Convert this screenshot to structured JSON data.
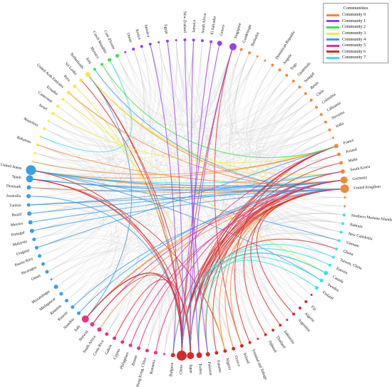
{
  "legend": {
    "title": "Communities",
    "items": [
      {
        "label": "Community 0",
        "color": "#f4883a"
      },
      {
        "label": "Community 1",
        "color": "#9b3fe8"
      },
      {
        "label": "Community 2",
        "color": "#3fe04a"
      },
      {
        "label": "Community 3",
        "color": "#f2e94a"
      },
      {
        "label": "Community 4",
        "color": "#3b9ee8"
      },
      {
        "label": "Community 5",
        "color": "#ee2f8a"
      },
      {
        "label": "Community 6",
        "color": "#d62a2a"
      },
      {
        "label": "Community 7",
        "color": "#35e6e6"
      }
    ]
  },
  "nodes": [
    {
      "label": "Singapore",
      "c": 1,
      "s": 5
    },
    {
      "label": "Guadeloupe",
      "c": 0,
      "s": 2
    },
    {
      "label": "Barbados",
      "c": 0,
      "s": 2
    },
    {
      "label": "",
      "c": 0,
      "s": 1.5
    },
    {
      "label": "",
      "c": 0,
      "s": 1.5
    },
    {
      "label": "Dominican Republic",
      "c": 0,
      "s": 2
    },
    {
      "label": "Angola",
      "c": 0,
      "s": 2
    },
    {
      "label": "Togo",
      "c": 0,
      "s": 2
    },
    {
      "label": "Guatemala",
      "c": 0,
      "s": 2
    },
    {
      "label": "Senegal",
      "c": 0,
      "s": 2
    },
    {
      "label": "Benin",
      "c": 0,
      "s": 2
    },
    {
      "label": "Chile",
      "c": 0,
      "s": 2
    },
    {
      "label": "Colombia",
      "c": 0,
      "s": 2
    },
    {
      "label": "Lithuania",
      "c": 0,
      "s": 2
    },
    {
      "label": "Slovenia",
      "c": 0,
      "s": 2
    },
    {
      "label": "India",
      "c": 0,
      "s": 2
    },
    {
      "label": "",
      "c": 0,
      "s": 1.5
    },
    {
      "label": "France",
      "c": 0,
      "s": 3
    },
    {
      "label": "Poland",
      "c": 0,
      "s": 2.5
    },
    {
      "label": "Malta",
      "c": 0,
      "s": 2.5
    },
    {
      "label": "South Korea",
      "c": 0,
      "s": 3
    },
    {
      "label": "Germany",
      "c": 0,
      "s": 5
    },
    {
      "label": "United Kingdom",
      "c": 0,
      "s": 6
    },
    {
      "label": "",
      "c": 0,
      "s": 1.5
    },
    {
      "label": "",
      "c": 0,
      "s": 1.5
    },
    {
      "label": "Northern Mariana Islands",
      "c": 7,
      "s": 2
    },
    {
      "label": "Bahrain",
      "c": 7,
      "s": 2
    },
    {
      "label": "New Caledonia",
      "c": 7,
      "s": 2
    },
    {
      "label": "Vietnam",
      "c": 7,
      "s": 2
    },
    {
      "label": "Ghana",
      "c": 7,
      "s": 2
    },
    {
      "label": "Taiwan, China",
      "c": 7,
      "s": 2
    },
    {
      "label": "Estonia",
      "c": 7,
      "s": 2
    },
    {
      "label": "Canada",
      "c": 7,
      "s": 3
    },
    {
      "label": "Sweden",
      "c": 7,
      "s": 2.5
    },
    {
      "label": "Finland",
      "c": 7,
      "s": 2.5
    },
    {
      "label": "",
      "c": 6,
      "s": 1.5
    },
    {
      "label": "Fiji",
      "c": 6,
      "s": 2
    },
    {
      "label": "Algeria",
      "c": 6,
      "s": 2
    },
    {
      "label": "Argentina",
      "c": 6,
      "s": 2
    },
    {
      "label": "",
      "c": 6,
      "s": 1.5
    },
    {
      "label": "Indonesia",
      "c": 6,
      "s": 2
    },
    {
      "label": "Thailand",
      "c": 6,
      "s": 2
    },
    {
      "label": "Djibouti",
      "c": 6,
      "s": 2
    },
    {
      "label": "",
      "c": 6,
      "s": 1.5
    },
    {
      "label": "Trinidad and Tobago",
      "c": 6,
      "s": 2
    },
    {
      "label": "Ireland",
      "c": 6,
      "s": 2.5
    },
    {
      "label": "Greece",
      "c": 6,
      "s": 2.5
    },
    {
      "label": "Nigeria",
      "c": 6,
      "s": 2.5
    },
    {
      "label": "Panama",
      "c": 6,
      "s": 2.5
    },
    {
      "label": "Pakistan",
      "c": 6,
      "s": 3
    },
    {
      "label": "Turkey",
      "c": 6,
      "s": 4
    },
    {
      "label": "Japan",
      "c": 6,
      "s": 5
    },
    {
      "label": "China",
      "c": 6,
      "s": 7
    },
    {
      "label": "Bulgaria",
      "c": 6,
      "s": 3
    },
    {
      "label": "",
      "c": 5,
      "s": 1.5
    },
    {
      "label": "Romania",
      "c": 5,
      "s": 2.5
    },
    {
      "label": "Hong Kong, China",
      "c": 5,
      "s": 2.5
    },
    {
      "label": "Brunei",
      "c": 5,
      "s": 2.5
    },
    {
      "label": "Philippines",
      "c": 5,
      "s": 2.5
    },
    {
      "label": "Cyprus",
      "c": 5,
      "s": 2.5
    },
    {
      "label": "Gabon",
      "c": 5,
      "s": 2.5
    },
    {
      "label": "Costa Rica",
      "c": 5,
      "s": 2.5
    },
    {
      "label": "South Africa",
      "c": 5,
      "s": 3
    },
    {
      "label": "Norway",
      "c": 5,
      "s": 3
    },
    {
      "label": "Italy",
      "c": 5,
      "s": 5
    },
    {
      "label": "Namibia",
      "c": 4,
      "s": 2.5
    },
    {
      "label": "Kuwait",
      "c": 4,
      "s": 2.5
    },
    {
      "label": "Reunion",
      "c": 4,
      "s": 2.5
    },
    {
      "label": "Madagascar",
      "c": 4,
      "s": 2.5
    },
    {
      "label": "Mozambique",
      "c": 4,
      "s": 3
    },
    {
      "label": "",
      "c": 4,
      "s": 1.5
    },
    {
      "label": "Oman",
      "c": 4,
      "s": 2.5
    },
    {
      "label": "Nicaragua",
      "c": 4,
      "s": 2.5
    },
    {
      "label": "Puerto Rico",
      "c": 4,
      "s": 2.5
    },
    {
      "label": "Uruguay",
      "c": 4,
      "s": 2.5
    },
    {
      "label": "Malaysia",
      "c": 4,
      "s": 2.5
    },
    {
      "label": "Portugal",
      "c": 4,
      "s": 3
    },
    {
      "label": "Mexico",
      "c": 4,
      "s": 3
    },
    {
      "label": "Brazil",
      "c": 4,
      "s": 3
    },
    {
      "label": "Tunisia",
      "c": 4,
      "s": 2.5
    },
    {
      "label": "Australia",
      "c": 4,
      "s": 3
    },
    {
      "label": "Denmark",
      "c": 4,
      "s": 3
    },
    {
      "label": "Spain",
      "c": 4,
      "s": 5
    },
    {
      "label": "United States",
      "c": 4,
      "s": 7
    },
    {
      "label": "",
      "c": 3,
      "s": 1.5
    },
    {
      "label": "",
      "c": 3,
      "s": 1.5
    },
    {
      "label": "Bahamas",
      "c": 3,
      "s": 2
    },
    {
      "label": "",
      "c": 3,
      "s": 1.5
    },
    {
      "label": "Mauritius",
      "c": 3,
      "s": 2
    },
    {
      "label": "",
      "c": 3,
      "s": 1.5
    },
    {
      "label": "Israel",
      "c": 3,
      "s": 2
    },
    {
      "label": "Cameroon",
      "c": 3,
      "s": 2
    },
    {
      "label": "Ecuador",
      "c": 3,
      "s": 2
    },
    {
      "label": "United Arab Emirates",
      "c": 3,
      "s": 2.5
    },
    {
      "label": "Peru",
      "c": 3,
      "s": 2.5
    },
    {
      "label": "Sri Lanka",
      "c": 3,
      "s": 2.5
    },
    {
      "label": "Netherlands",
      "c": 3,
      "s": 3.5
    },
    {
      "label": "Iraq",
      "c": 2,
      "s": 2
    },
    {
      "label": "Monaco",
      "c": 2,
      "s": 2
    },
    {
      "label": "Czech Republic",
      "c": 2,
      "s": 2.5
    },
    {
      "label": "Cote d'Ivoire",
      "c": 2,
      "s": 2.5
    },
    {
      "label": "",
      "c": 1,
      "s": 1.5
    },
    {
      "label": "Oman",
      "c": 1,
      "s": 2
    },
    {
      "label": "Kenya",
      "c": 1,
      "s": 2
    },
    {
      "label": "Jamaica",
      "c": 1,
      "s": 2
    },
    {
      "label": "",
      "c": 1,
      "s": 1.5
    },
    {
      "label": "Egypt",
      "c": 1,
      "s": 2
    },
    {
      "label": "",
      "c": 1,
      "s": 1.5
    },
    {
      "label": "New Zealand",
      "c": 1,
      "s": 2
    },
    {
      "label": "Jamaica",
      "c": 1,
      "s": 2
    },
    {
      "label": "South Africa",
      "c": 1,
      "s": 2
    },
    {
      "label": "El Salvador",
      "c": 1,
      "s": 2
    },
    {
      "label": "Greece",
      "c": 1,
      "s": 3.5
    }
  ],
  "edges": [
    [
      113,
      52,
      6
    ],
    [
      113,
      50,
      1
    ],
    [
      113,
      64,
      1
    ],
    [
      113,
      63,
      1
    ],
    [
      113,
      95,
      1
    ],
    [
      0,
      45,
      6
    ],
    [
      0,
      52,
      6
    ],
    [
      0,
      51,
      1
    ],
    [
      83,
      22,
      0
    ],
    [
      83,
      21,
      0
    ],
    [
      83,
      17,
      0
    ],
    [
      83,
      20,
      7
    ],
    [
      83,
      33,
      4
    ],
    [
      83,
      28,
      4
    ],
    [
      82,
      22,
      0
    ],
    [
      82,
      21,
      4
    ],
    [
      82,
      47,
      6
    ],
    [
      82,
      52,
      6
    ],
    [
      81,
      21,
      4
    ],
    [
      81,
      22,
      0
    ],
    [
      80,
      52,
      4
    ],
    [
      78,
      21,
      4
    ],
    [
      96,
      52,
      6
    ],
    [
      96,
      51,
      6
    ],
    [
      96,
      22,
      0
    ],
    [
      96,
      20,
      3
    ],
    [
      96,
      21,
      3
    ],
    [
      95,
      52,
      6
    ],
    [
      94,
      51,
      3
    ],
    [
      93,
      47,
      3
    ],
    [
      93,
      22,
      0
    ],
    [
      99,
      87,
      7
    ],
    [
      92,
      32,
      3
    ],
    [
      90,
      17,
      3
    ],
    [
      64,
      22,
      0
    ],
    [
      64,
      21,
      0
    ],
    [
      64,
      113,
      1
    ],
    [
      64,
      52,
      6
    ],
    [
      64,
      96,
      4
    ],
    [
      63,
      21,
      5
    ],
    [
      62,
      22,
      0
    ],
    [
      61,
      113,
      6
    ],
    [
      60,
      52,
      6
    ],
    [
      52,
      22,
      6
    ],
    [
      52,
      21,
      6
    ],
    [
      52,
      17,
      6
    ],
    [
      52,
      20,
      6
    ],
    [
      52,
      18,
      6
    ],
    [
      52,
      32,
      6
    ],
    [
      51,
      22,
      6
    ],
    [
      51,
      21,
      6
    ],
    [
      51,
      17,
      6
    ],
    [
      51,
      19,
      6
    ],
    [
      51,
      29,
      6
    ],
    [
      50,
      22,
      6
    ],
    [
      50,
      21,
      6
    ],
    [
      50,
      17,
      6
    ],
    [
      49,
      22,
      6
    ],
    [
      49,
      21,
      0
    ],
    [
      47,
      22,
      0
    ],
    [
      46,
      21,
      0
    ],
    [
      45,
      22,
      0
    ],
    [
      48,
      20,
      6
    ],
    [
      53,
      21,
      6
    ],
    [
      32,
      52,
      7
    ],
    [
      32,
      51,
      7
    ],
    [
      33,
      49,
      7
    ],
    [
      34,
      50,
      7
    ],
    [
      31,
      53,
      7
    ],
    [
      30,
      52,
      7
    ],
    [
      21,
      65,
      4
    ],
    [
      22,
      66,
      4
    ],
    [
      20,
      79,
      4
    ],
    [
      21,
      83,
      4
    ],
    [
      22,
      82,
      4
    ],
    [
      84,
      17,
      0
    ],
    [
      86,
      21,
      0
    ],
    [
      76,
      22,
      4
    ],
    [
      77,
      21,
      4
    ],
    [
      74,
      17,
      4
    ],
    [
      79,
      22,
      4
    ],
    [
      44,
      17,
      6
    ],
    [
      42,
      22,
      6
    ],
    [
      40,
      21,
      6
    ],
    [
      38,
      22,
      6
    ],
    [
      57,
      21,
      5
    ],
    [
      58,
      22,
      5
    ],
    [
      59,
      17,
      5
    ],
    [
      55,
      20,
      5
    ],
    [
      112,
      52,
      1
    ],
    [
      111,
      51,
      1
    ],
    [
      109,
      50,
      1
    ],
    [
      108,
      49,
      1
    ],
    [
      106,
      52,
      1
    ],
    [
      104,
      53,
      1
    ],
    [
      98,
      17,
      2
    ],
    [
      97,
      22,
      4
    ],
    [
      83,
      52,
      6
    ],
    [
      82,
      51,
      6
    ],
    [
      64,
      51,
      6
    ],
    [
      63,
      52,
      6
    ]
  ]
}
